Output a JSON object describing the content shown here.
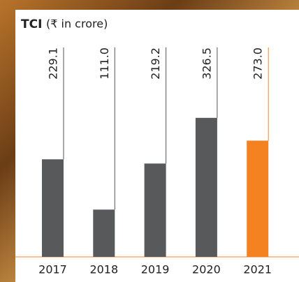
{
  "chart_data": {
    "type": "bar",
    "title": "TCI",
    "subtitle": "(₹ in crore)",
    "categories": [
      "2017",
      "2018",
      "2019",
      "2020",
      "2021"
    ],
    "values": [
      229.1,
      111.0,
      219.2,
      326.5,
      273.0
    ],
    "value_labels": [
      "229.1",
      "111.0",
      "219.2",
      "326.5",
      "273.0"
    ],
    "colors": [
      "#58595b",
      "#58595b",
      "#58595b",
      "#58595b",
      "#f58220"
    ]
  }
}
